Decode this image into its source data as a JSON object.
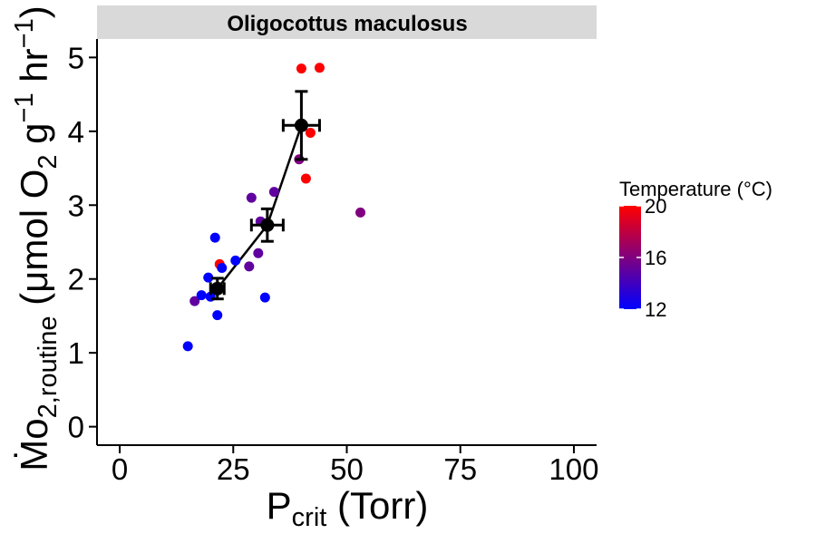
{
  "chart_data": {
    "type": "scatter",
    "facet_title": "Oligocottus maculosus",
    "xlabel": {
      "main": "P",
      "sub": "crit",
      "rest": " (Torr)"
    },
    "ylabel": {
      "main": "Ṁo",
      "sub": "2,routine",
      "rest_open": " (μmol O",
      "o2_sub": "2",
      "g_part": " g",
      "sup1": "−1",
      "hr_part": " hr",
      "sup2": "−1",
      "close": ")"
    },
    "xlim": [
      -5,
      105
    ],
    "ylim": [
      -0.25,
      5.25
    ],
    "x_ticks": [
      0,
      25,
      50,
      75,
      100
    ],
    "x_tick_labels": [
      "0",
      "25",
      "50",
      "75",
      "100"
    ],
    "y_ticks": [
      0,
      1,
      2,
      3,
      4,
      5
    ],
    "y_tick_labels": [
      "0",
      "1",
      "2",
      "3",
      "4",
      "5"
    ],
    "grid": false,
    "legend": {
      "title": "Temperature (°C)",
      "position": "right",
      "range": [
        12,
        20
      ],
      "ticks": [
        12,
        16,
        20
      ],
      "tick_labels": [
        "12",
        "16",
        "20"
      ],
      "colors": [
        "#0000ff",
        "#ff0000"
      ]
    },
    "points": [
      {
        "x": 15,
        "y": 1.09,
        "temp": 12
      },
      {
        "x": 16.5,
        "y": 1.7,
        "temp": 15
      },
      {
        "x": 18,
        "y": 1.78,
        "temp": 12
      },
      {
        "x": 19.5,
        "y": 2.02,
        "temp": 12
      },
      {
        "x": 20,
        "y": 1.76,
        "temp": 12
      },
      {
        "x": 21,
        "y": 2.56,
        "temp": 12
      },
      {
        "x": 21.5,
        "y": 1.51,
        "temp": 12
      },
      {
        "x": 22,
        "y": 2.2,
        "temp": 20
      },
      {
        "x": 22.5,
        "y": 2.15,
        "temp": 12
      },
      {
        "x": 25.5,
        "y": 2.25,
        "temp": 12
      },
      {
        "x": 28.5,
        "y": 2.17,
        "temp": 15
      },
      {
        "x": 29,
        "y": 3.1,
        "temp": 15
      },
      {
        "x": 30.5,
        "y": 2.35,
        "temp": 15
      },
      {
        "x": 31,
        "y": 2.78,
        "temp": 15
      },
      {
        "x": 32,
        "y": 1.75,
        "temp": 12
      },
      {
        "x": 34,
        "y": 3.18,
        "temp": 15
      },
      {
        "x": 39.5,
        "y": 3.62,
        "temp": 16
      },
      {
        "x": 40,
        "y": 4.85,
        "temp": 20
      },
      {
        "x": 41,
        "y": 3.36,
        "temp": 20
      },
      {
        "x": 42,
        "y": 3.98,
        "temp": 20
      },
      {
        "x": 44,
        "y": 4.86,
        "temp": 20
      },
      {
        "x": 53,
        "y": 2.9,
        "temp": 16
      }
    ],
    "means": [
      {
        "x": 21.5,
        "y": 1.87,
        "xerr": 1.5,
        "yerr": 0.14
      },
      {
        "x": 32.5,
        "y": 2.73,
        "xerr": 3.5,
        "yerr": 0.22
      },
      {
        "x": 40,
        "y": 4.08,
        "xerr": 4.0,
        "yerr": 0.46
      }
    ]
  }
}
